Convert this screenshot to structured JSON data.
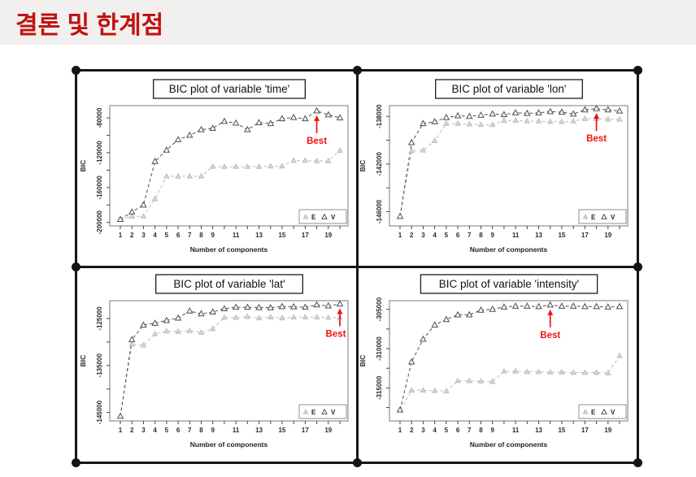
{
  "page": {
    "title": "결론 및 한계점"
  },
  "theme": {
    "title_color": "#bf1312",
    "header_background": "#f2f0ef",
    "figure_border_color": "#161616",
    "best_color": "#ee1111"
  },
  "chart_data": [
    {
      "type": "line",
      "title": "BIC plot of variable 'time'",
      "xlabel": "Number of components",
      "ylabel": "BIC",
      "x": [
        1,
        2,
        3,
        4,
        5,
        6,
        7,
        8,
        9,
        10,
        11,
        12,
        13,
        14,
        15,
        16,
        17,
        18,
        19,
        20
      ],
      "x_tick_labels": [
        1,
        2,
        3,
        4,
        5,
        6,
        7,
        8,
        9,
        11,
        13,
        15,
        17,
        19
      ],
      "ylim": [
        -204000,
        -66000
      ],
      "yticks": [
        -200000,
        -160000,
        -120000,
        -80000
      ],
      "yticks_minor": [
        -180000,
        -140000,
        -100000
      ],
      "series": [
        {
          "name": "E",
          "color": "#bdbdbd",
          "fill": "#d8d8d8",
          "values": [
            -196500,
            -193000,
            -193000,
            -173000,
            -147000,
            -147000,
            -147000,
            -147000,
            -136000,
            -136000,
            -136000,
            -136000,
            -136000,
            -135500,
            -135500,
            -129000,
            -129000,
            -129500,
            -129500,
            -117500
          ]
        },
        {
          "name": "V",
          "color": "#4d4d4d",
          "fill": "#ffffff",
          "values": [
            -196500,
            -188000,
            -180000,
            -130000,
            -117000,
            -105000,
            -100000,
            -93500,
            -92000,
            -84000,
            -86000,
            -93500,
            -85500,
            -86500,
            -81000,
            -79500,
            -81000,
            -72000,
            -76500,
            -80000
          ]
        }
      ],
      "legend": {
        "labels": [
          "E",
          "V"
        ],
        "position": "bottom-right"
      },
      "best": {
        "x": 18,
        "series": "V",
        "label": "Best"
      }
    },
    {
      "type": "line",
      "title": "BIC plot of variable 'lon'",
      "xlabel": "Number of components",
      "ylabel": "BIC",
      "x": [
        1,
        2,
        3,
        4,
        5,
        6,
        7,
        8,
        9,
        10,
        11,
        12,
        13,
        14,
        15,
        16,
        17,
        18,
        19,
        20
      ],
      "x_tick_labels": [
        1,
        2,
        3,
        4,
        5,
        6,
        7,
        8,
        9,
        11,
        13,
        15,
        17,
        19
      ],
      "ylim": [
        -147200,
        -137100
      ],
      "yticks": [
        -146000,
        -142000,
        -138000
      ],
      "yticks_minor": [
        -144000,
        -140000
      ],
      "series": [
        {
          "name": "E",
          "color": "#bdbdbd",
          "fill": "#d8d8d8",
          "values": [
            -146400,
            -140900,
            -140850,
            -140050,
            -138600,
            -138600,
            -138650,
            -138700,
            -138700,
            -138350,
            -138350,
            -138400,
            -138400,
            -138450,
            -138450,
            -138400,
            -138200,
            -138200,
            -138250,
            -138250
          ]
        },
        {
          "name": "V",
          "color": "#4d4d4d",
          "fill": "#ffffff",
          "values": [
            -146400,
            -140200,
            -138600,
            -138450,
            -138100,
            -137950,
            -138000,
            -137900,
            -137800,
            -137850,
            -137700,
            -137750,
            -137700,
            -137600,
            -137650,
            -137800,
            -137450,
            -137350,
            -137450,
            -137550
          ]
        }
      ],
      "legend": {
        "labels": [
          "E",
          "V"
        ],
        "position": "bottom-right"
      },
      "best": {
        "x": 18,
        "series": "V",
        "label": "Best"
      }
    },
    {
      "type": "line",
      "title": "BIC plot of variable 'lat'",
      "xlabel": "Number of components",
      "ylabel": "BIC",
      "x": [
        1,
        2,
        3,
        4,
        5,
        6,
        7,
        8,
        9,
        10,
        11,
        12,
        13,
        14,
        15,
        16,
        17,
        18,
        19,
        20
      ],
      "x_tick_labels": [
        1,
        2,
        3,
        4,
        5,
        6,
        7,
        8,
        9,
        11,
        13,
        15,
        17,
        19
      ],
      "ylim": [
        -146800,
        -121200
      ],
      "yticks": [
        -145000,
        -135000,
        -125000
      ],
      "yticks_minor": [
        -140000,
        -130000
      ],
      "series": [
        {
          "name": "E",
          "color": "#bdbdbd",
          "fill": "#d8d8d8",
          "values": [
            -145800,
            -130500,
            -130700,
            -128300,
            -127700,
            -127800,
            -127600,
            -128000,
            -127200,
            -124800,
            -124800,
            -124600,
            -124900,
            -124700,
            -124900,
            -124700,
            -124700,
            -124700,
            -124800,
            -124800
          ]
        },
        {
          "name": "V",
          "color": "#4d4d4d",
          "fill": "#ffffff",
          "values": [
            -145800,
            -129500,
            -126400,
            -126000,
            -125400,
            -124900,
            -123400,
            -124000,
            -123600,
            -122900,
            -122600,
            -122600,
            -122650,
            -122700,
            -122450,
            -122500,
            -122600,
            -122100,
            -122300,
            -121900
          ]
        }
      ],
      "legend": {
        "labels": [
          "E",
          "V"
        ],
        "position": "bottom-right"
      },
      "best": {
        "x": 20,
        "series": "V",
        "label": "Best"
      }
    },
    {
      "type": "line",
      "title": "BIC plot of variable 'intensity'",
      "xlabel": "Number of components",
      "ylabel": "BIC",
      "x": [
        1,
        2,
        3,
        4,
        5,
        6,
        7,
        8,
        9,
        10,
        11,
        12,
        13,
        14,
        15,
        16,
        17,
        18,
        19,
        20
      ],
      "x_tick_labels": [
        1,
        2,
        3,
        4,
        5,
        6,
        7,
        8,
        9,
        11,
        13,
        15,
        17,
        19
      ],
      "ylim": [
        -319200,
        -303900
      ],
      "yticks": [
        -315000,
        -310000,
        -305000
      ],
      "yticks_minor": [
        -317500,
        -312500,
        -307500
      ],
      "series": [
        {
          "name": "E",
          "color": "#bdbdbd",
          "fill": "#d8d8d8",
          "values": [
            -317800,
            -315300,
            -315300,
            -315350,
            -315400,
            -314100,
            -314100,
            -314150,
            -314200,
            -312900,
            -312900,
            -312950,
            -312950,
            -313000,
            -313000,
            -313050,
            -313050,
            -313050,
            -313100,
            -310900
          ]
        },
        {
          "name": "V",
          "color": "#4d4d4d",
          "fill": "#ffffff",
          "values": [
            -317800,
            -311700,
            -308800,
            -307000,
            -306300,
            -305700,
            -305700,
            -305100,
            -305000,
            -304700,
            -304600,
            -304600,
            -304650,
            -304450,
            -304600,
            -304600,
            -304650,
            -304650,
            -304700,
            -304650
          ]
        }
      ],
      "legend": {
        "labels": [
          "E",
          "V"
        ],
        "position": "bottom-right"
      },
      "best": {
        "x": 14,
        "series": "V",
        "label": "Best"
      }
    }
  ]
}
